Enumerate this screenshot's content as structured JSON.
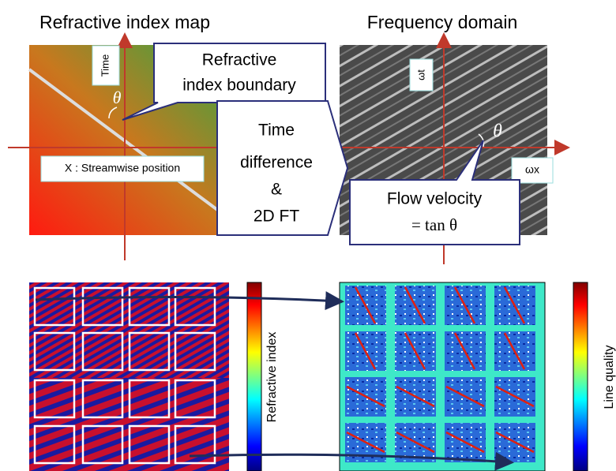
{
  "titles": {
    "left": "Refractive index map",
    "right": "Frequency domain"
  },
  "left_panel": {
    "y_axis": "Time",
    "x_axis": "X : Streamwise position",
    "angle": "θ"
  },
  "callouts": {
    "boundary": [
      "Refractive",
      "index boundary"
    ],
    "transform": [
      "Time",
      "difference",
      "&",
      "2D FT"
    ],
    "velocity": [
      "Flow velocity",
      "= tan θ"
    ]
  },
  "right_panel": {
    "y_axis": "ωt",
    "x_axis": "ωx",
    "angle": "θ"
  },
  "colorbars": {
    "left": "Refractive index",
    "right": "Line quality"
  }
}
